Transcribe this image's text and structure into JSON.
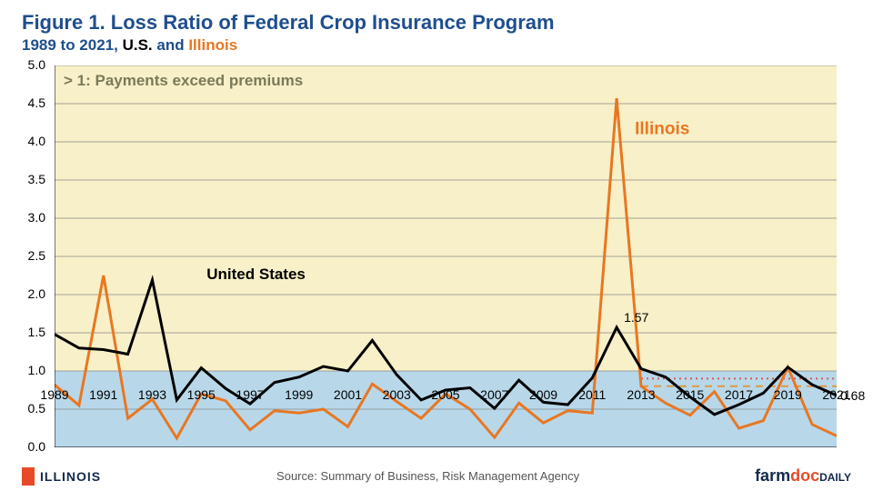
{
  "title_prefix": "Figure 1. ",
  "title_main": "Loss Ratio of Federal Crop Insurance Program",
  "subtitle_range": "1989 to 2021, ",
  "subtitle_us": "U.S.",
  "subtitle_and": " and ",
  "subtitle_il": "Illinois",
  "colors": {
    "title_blue": "#1f4e8c",
    "us_black": "#000000",
    "il_orange": "#e87722",
    "band_top": "#f8f0c8",
    "band_bottom": "#b8d8ea",
    "gridline": "#888888",
    "axis": "#000000",
    "ref_dotted": "#dd5555",
    "ref_dashed": "#dd9944",
    "footer_blue": "#13294b",
    "footer_orange": "#e84a27"
  },
  "chart": {
    "type": "line",
    "ylim": [
      0,
      5.0
    ],
    "ytick_step": 0.5,
    "x_years": [
      1989,
      1990,
      1991,
      1992,
      1993,
      1994,
      1995,
      1996,
      1997,
      1998,
      1999,
      2000,
      2001,
      2002,
      2003,
      2004,
      2005,
      2006,
      2007,
      2008,
      2009,
      2010,
      2011,
      2012,
      2013,
      2014,
      2015,
      2016,
      2017,
      2018,
      2019,
      2020,
      2021
    ],
    "x_tick_labels": [
      1989,
      1991,
      1993,
      1995,
      1997,
      1999,
      2001,
      2003,
      2005,
      2007,
      2009,
      2011,
      2013,
      2015,
      2017,
      2019,
      2021
    ],
    "divider_y": 1.0,
    "series": {
      "us": {
        "label": "United States",
        "color": "#000000",
        "line_width": 3,
        "values": [
          1.48,
          1.3,
          1.28,
          1.22,
          2.19,
          0.62,
          1.04,
          0.77,
          0.57,
          0.85,
          0.92,
          1.06,
          1.0,
          1.4,
          0.95,
          0.62,
          0.75,
          0.78,
          0.51,
          0.88,
          0.59,
          0.56,
          0.91,
          1.57,
          1.03,
          0.92,
          0.66,
          0.43,
          0.56,
          0.71,
          1.05,
          0.82,
          0.68
        ]
      },
      "il": {
        "label": "Illinois",
        "color": "#e87722",
        "line_width": 3,
        "values": [
          0.82,
          0.55,
          2.25,
          0.38,
          0.63,
          0.12,
          0.7,
          0.61,
          0.23,
          0.48,
          0.45,
          0.5,
          0.27,
          0.83,
          0.6,
          0.38,
          0.7,
          0.5,
          0.13,
          0.58,
          0.32,
          0.48,
          0.45,
          4.57,
          0.8,
          0.58,
          0.42,
          0.73,
          0.25,
          0.35,
          1.05,
          0.3,
          0.15
        ]
      }
    },
    "annotations": {
      "band_note": "> 1: Payments exceed premiums",
      "us_label": "United States",
      "il_label": "Illinois",
      "peak_label": "1.57",
      "end_label": "0.68"
    },
    "reference_lines": {
      "dotted": {
        "y": 0.9,
        "x_start_year": 2013,
        "color": "#dd5555",
        "dash": "2,4"
      },
      "dashed": {
        "y": 0.8,
        "x_start_year": 2013,
        "color": "#dd9944",
        "dash": "8,6"
      }
    }
  },
  "footer": {
    "illinois_text": "ILLINOIS",
    "source": "Source:  Summary of Business, Risk Management Agency",
    "farmdoc_prefix": "farm",
    "farmdoc_mid": "doc",
    "farmdoc_suffix": "DAILY"
  }
}
